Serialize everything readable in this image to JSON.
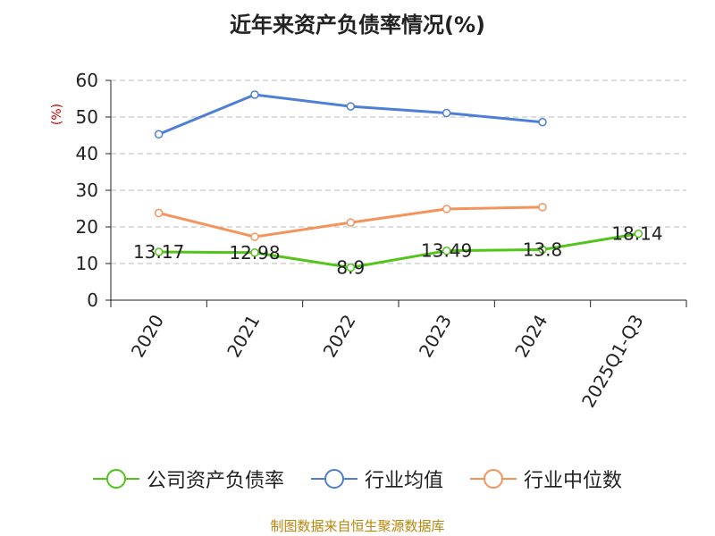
{
  "chart_data": {
    "type": "line",
    "title": "近年来资产负债率情况(%)",
    "ylabel": "(%)",
    "xlabel": "",
    "categories": [
      "2020",
      "2021",
      "2022",
      "2023",
      "2024",
      "2025Q1-Q3"
    ],
    "ylim": [
      0,
      60
    ],
    "yticks": [
      0,
      10,
      20,
      30,
      40,
      50,
      60
    ],
    "grid": true,
    "legend_position": "bottom",
    "series": [
      {
        "name": "公司资产负债率",
        "color": "#52c41a",
        "values": [
          13.17,
          12.98,
          8.9,
          13.49,
          13.8,
          18.14
        ],
        "labels": [
          "13.17",
          "12.98",
          "8.9",
          "13.49",
          "13.8",
          "18.14"
        ]
      },
      {
        "name": "行业均值",
        "color": "#4e7fd8",
        "values": [
          45.3,
          56.1,
          52.9,
          51.1,
          48.6,
          null
        ]
      },
      {
        "name": "行业中位数",
        "color": "#f4945c",
        "values": [
          23.8,
          17.3,
          21.2,
          24.9,
          25.4,
          null
        ]
      }
    ]
  },
  "source_text": "制图数据来自恒生聚源数据库"
}
